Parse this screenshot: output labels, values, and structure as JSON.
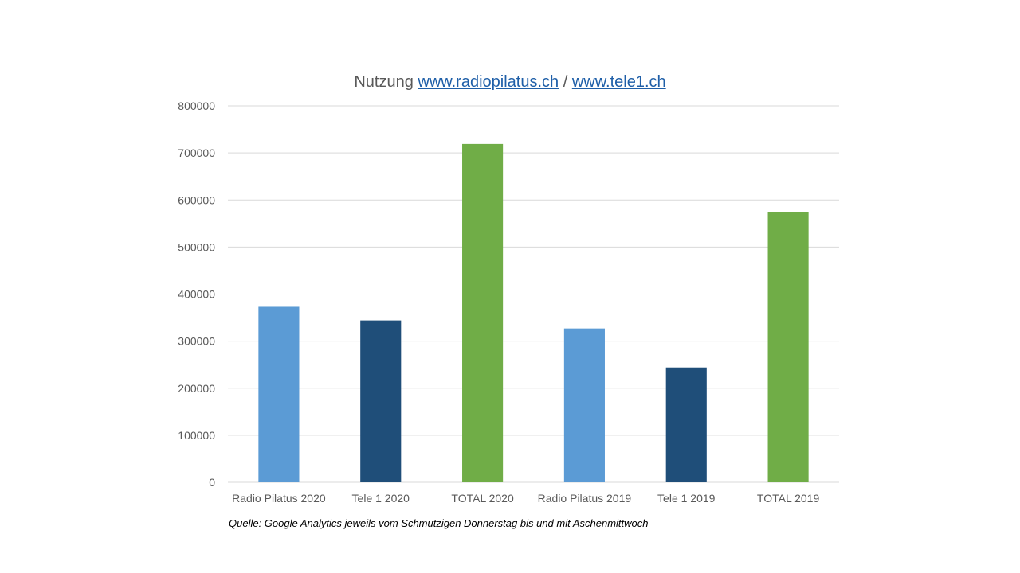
{
  "chart_data": {
    "type": "bar",
    "title": {
      "prefix": "Nutzung ",
      "link1": "www.radiopilatus.ch",
      "separator": " / ",
      "link2": "www.tele1.ch"
    },
    "categories": [
      "Radio Pilatus 2020",
      "Tele 1 2020",
      "TOTAL 2020",
      "Radio Pilatus 2019",
      "Tele 1 2019",
      "TOTAL 2019"
    ],
    "values": [
      373000,
      344000,
      719000,
      327000,
      244000,
      575000
    ],
    "bar_colors": [
      "#5b9bd5",
      "#1f4e79",
      "#70ad47",
      "#5b9bd5",
      "#1f4e79",
      "#70ad47"
    ],
    "ylim": [
      0,
      800000
    ],
    "yticks": [
      0,
      100000,
      200000,
      300000,
      400000,
      500000,
      600000,
      700000,
      800000
    ],
    "ytick_labels": [
      "0",
      "100000",
      "200000",
      "300000",
      "400000",
      "500000",
      "600000",
      "700000",
      "800000"
    ],
    "xlabel": "",
    "ylabel": "",
    "grid": true,
    "legend": "none"
  },
  "footnote": "Quelle: Google Analytics jeweils vom Schmutzigen Donnerstag bis und mit Aschenmittwoch"
}
